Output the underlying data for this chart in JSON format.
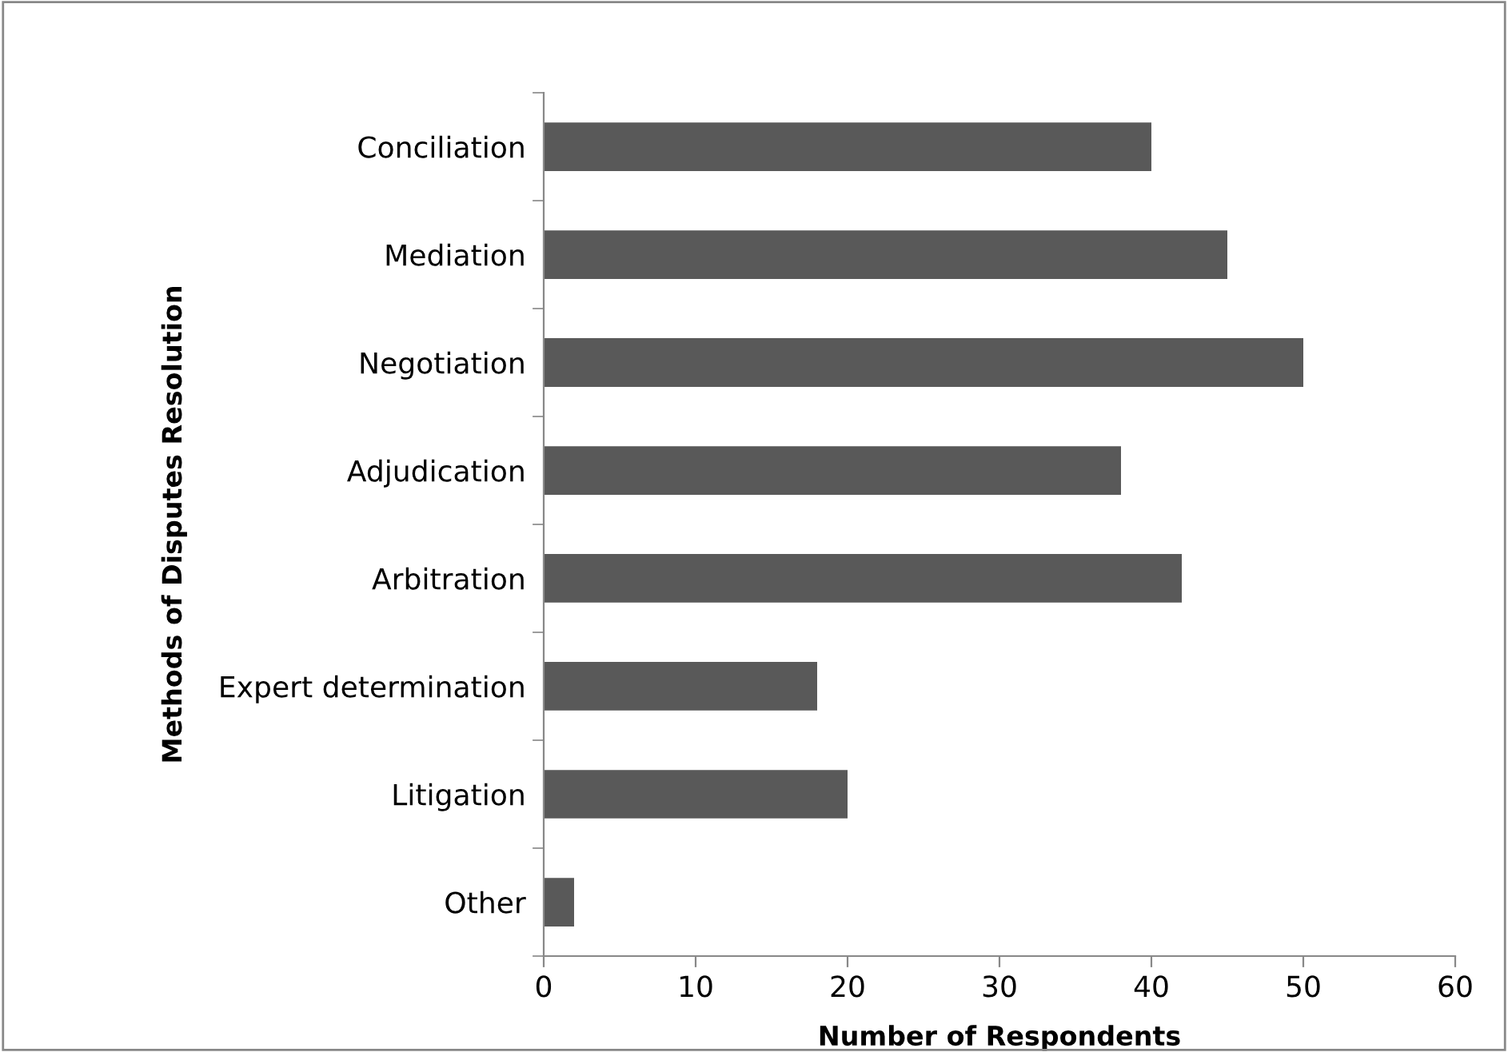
{
  "chart_data": {
    "type": "bar",
    "orientation": "horizontal",
    "xlabel": "Number of Respondents",
    "ylabel": "Methods of Disputes Resolution",
    "categories": [
      "Conciliation",
      "Mediation",
      "Negotiation",
      "Adjudication",
      "Arbitration",
      "Expert determination",
      "Litigation",
      "Other"
    ],
    "values": [
      40,
      45,
      50,
      38,
      42,
      18,
      20,
      2
    ],
    "color": "#595959",
    "xlim": [
      0,
      60
    ],
    "xticks": [
      0,
      10,
      20,
      30,
      40,
      50,
      60
    ],
    "grid": false,
    "legend": false
  }
}
